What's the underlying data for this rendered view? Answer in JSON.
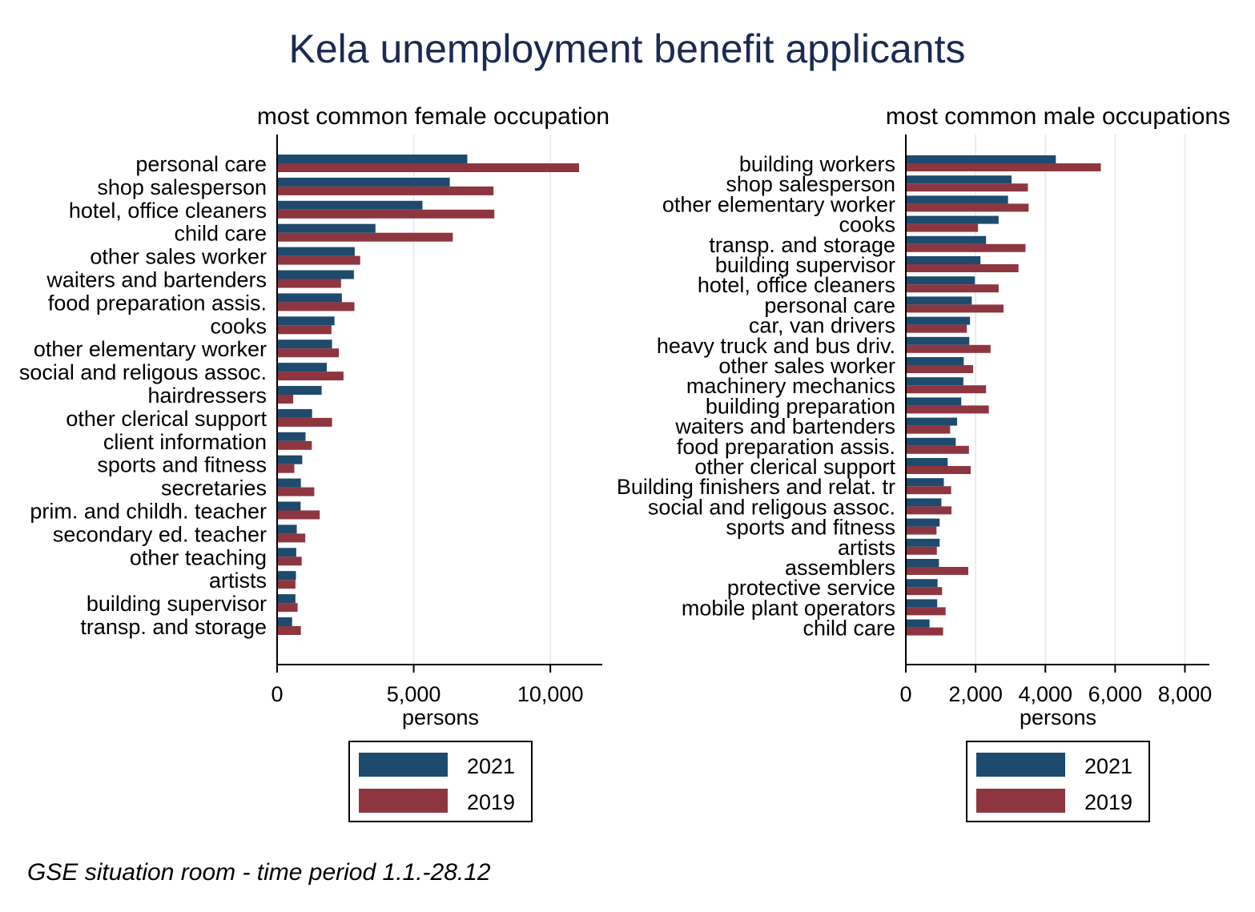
{
  "title": "Kela unemployment benefit applicants",
  "note": "GSE situation room - time period 1.1.-28.12",
  "colors": {
    "2021": "#1e4a6e",
    "2019": "#8e3640",
    "grid": "#e6eef1"
  },
  "chart_data": [
    {
      "type": "bar",
      "orientation": "horizontal",
      "title": "most common female occupation",
      "xlabel": "persons",
      "ylabel": "",
      "xlim": [
        0,
        11900
      ],
      "xticks": [
        0,
        5000,
        10000
      ],
      "xtick_labels": [
        "0",
        "5,000",
        "10,000"
      ],
      "grid": true,
      "legend": {
        "position": "bottom",
        "entries": [
          "2021",
          "2019"
        ]
      },
      "categories": [
        "personal care",
        "shop salesperson",
        "hotel, office cleaners",
        "child care",
        "other sales worker",
        "waiters and bartenders",
        "food preparation assis.",
        "cooks",
        "other elementary worker",
        "social and religous assoc.",
        "hairdressers",
        "other clerical support",
        "client information",
        "sports and fitness",
        "secretaries",
        "prim. and childh. teacher",
        "secondary ed. teacher",
        "other teaching",
        "artists",
        "building supervisor",
        "transp. and storage"
      ],
      "series": [
        {
          "name": "2021",
          "values": [
            6960,
            6320,
            5320,
            3600,
            2840,
            2810,
            2370,
            2100,
            2010,
            1820,
            1630,
            1280,
            1040,
            920,
            870,
            860,
            720,
            700,
            690,
            670,
            550
          ]
        },
        {
          "name": "2019",
          "values": [
            11050,
            7920,
            7950,
            6430,
            3040,
            2340,
            2830,
            1990,
            2260,
            2430,
            590,
            2010,
            1270,
            630,
            1360,
            1560,
            1030,
            900,
            670,
            750,
            870
          ]
        }
      ]
    },
    {
      "type": "bar",
      "orientation": "horizontal",
      "title": "most common male occupations",
      "xlabel": "persons",
      "ylabel": "",
      "xlim": [
        0,
        8700
      ],
      "xticks": [
        0,
        2000,
        4000,
        6000,
        8000
      ],
      "xtick_labels": [
        "0",
        "2,000",
        "4,000",
        "6,000",
        "8,000"
      ],
      "grid": true,
      "legend": {
        "position": "bottom",
        "entries": [
          "2021",
          "2019"
        ]
      },
      "categories": [
        "building workers",
        "shop salesperson",
        "other elementary worker",
        "cooks",
        "transp. and storage",
        "building supervisor",
        "hotel, office cleaners",
        "personal care",
        "car, van drivers",
        "heavy truck and bus driv.",
        "other sales worker",
        "machinery mechanics",
        "building preparation",
        "waiters and bartenders",
        "food preparation assis.",
        "other clerical support",
        "Building finishers and relat. tr",
        "social and religous assoc.",
        "sports and fitness",
        "artists",
        "assemblers",
        "protective service",
        "mobile plant operators",
        "child care"
      ],
      "series": [
        {
          "name": "2021",
          "values": [
            4300,
            3030,
            2930,
            2660,
            2300,
            2140,
            1980,
            1890,
            1840,
            1820,
            1660,
            1650,
            1590,
            1470,
            1430,
            1200,
            1090,
            1020,
            970,
            970,
            950,
            910,
            900,
            680
          ]
        },
        {
          "name": "2019",
          "values": [
            5590,
            3500,
            3520,
            2070,
            3430,
            3230,
            2660,
            2800,
            1750,
            2430,
            1930,
            2300,
            2380,
            1270,
            1810,
            1860,
            1300,
            1310,
            880,
            890,
            1790,
            1040,
            1140,
            1070
          ]
        }
      ]
    }
  ]
}
